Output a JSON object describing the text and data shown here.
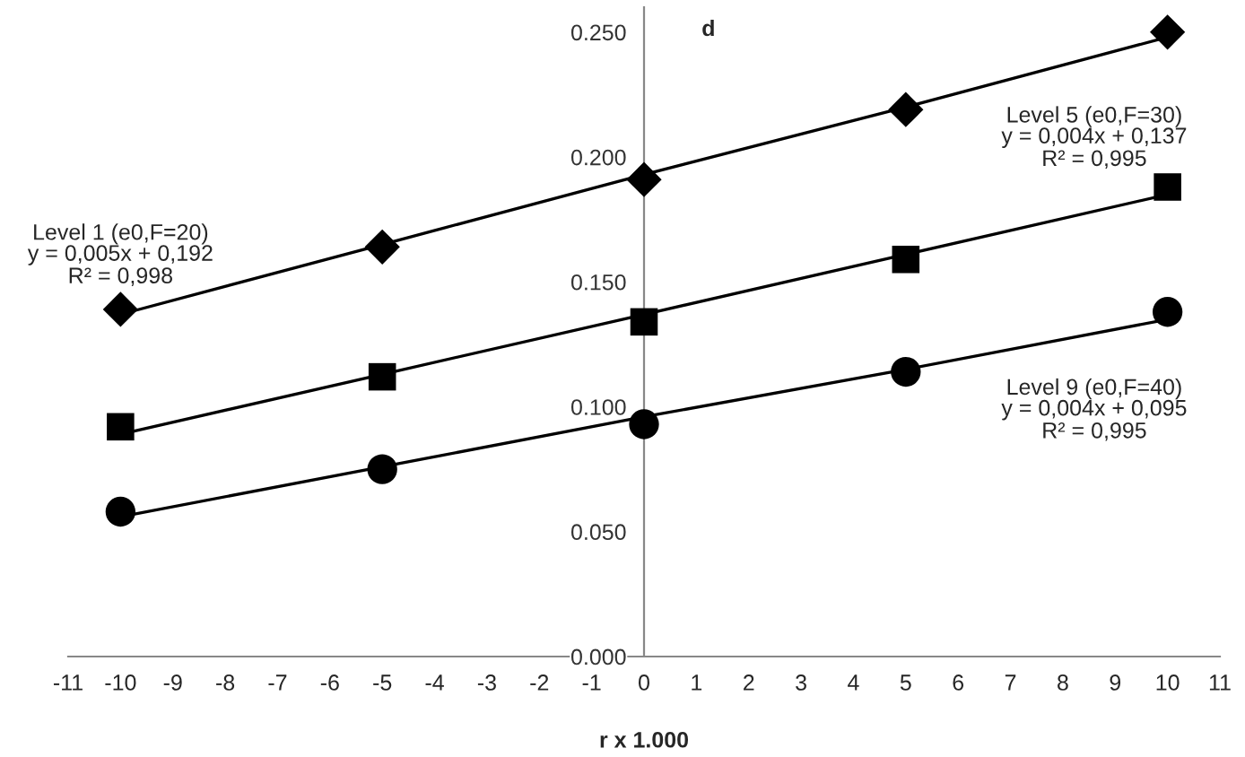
{
  "chart_data": {
    "type": "scatter",
    "xlabel": "r x 1.000",
    "x": [
      -10,
      -5,
      0,
      5,
      10
    ],
    "series": [
      {
        "name": "Level 1 (e0,F=20)",
        "marker": "diamond",
        "color": "#000000",
        "values": [
          0.139,
          0.164,
          0.191,
          0.219,
          0.25
        ]
      },
      {
        "name": "Level 5 (e0,F=30)",
        "marker": "square",
        "color": "#000000",
        "values": [
          0.092,
          0.112,
          0.134,
          0.159,
          0.188
        ]
      },
      {
        "name": "Level 9 (e0,F=40)",
        "marker": "circle",
        "color": "#000000",
        "values": [
          0.058,
          0.075,
          0.093,
          0.114,
          0.138
        ]
      },
      {
        "type": "line",
        "color": "#000000",
        "values": [
          0.137,
          0.165,
          0.193,
          0.22,
          0.248
        ]
      },
      {
        "type": "line",
        "color": "#000000",
        "values": [
          0.089,
          0.113,
          0.137,
          0.161,
          0.185
        ]
      },
      {
        "type": "line",
        "color": "#000000",
        "values": [
          0.056,
          0.076,
          0.096,
          0.115,
          0.135
        ]
      }
    ],
    "annotations": [
      "d",
      "y = 0,005x + 0,192\nR² = 0,998",
      "y = 0,004x + 0,137\nR² = 0,995",
      "y = 0,004x + 0,095\nR² = 0,995"
    ],
    "xlim": [
      -11,
      11
    ],
    "xticks": [
      -11,
      -10,
      -9,
      -8,
      -7,
      -6,
      -5,
      -4,
      -3,
      -2,
      -1,
      0,
      1,
      2,
      3,
      4,
      5,
      6,
      7,
      8,
      9,
      10,
      11
    ],
    "ylim": [
      0,
      0.26
    ],
    "yticks": [
      {
        "value": 0,
        "label": "0.000"
      },
      {
        "value": 0.05,
        "label": "0.050"
      },
      {
        "value": 0.1,
        "label": "0.100"
      },
      {
        "value": 0.15,
        "label": "0.150"
      },
      {
        "value": 0.2,
        "label": "0.200"
      },
      {
        "value": 0.25,
        "label": "0.250"
      }
    ],
    "grid": false,
    "legend": false
  }
}
